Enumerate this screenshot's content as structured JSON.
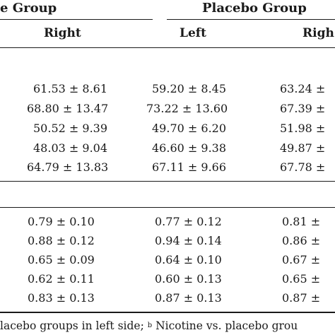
{
  "header": {
    "group_left": "e Group",
    "group_right": "Placebo Group",
    "sub_right": "Right",
    "sub_left": "Left",
    "sub_right2": "Righ"
  },
  "section1": {
    "rows": [
      {
        "c1": "61.53 ± 8.61",
        "c2": "59.20 ± 8.45",
        "c3": "63.24 ±"
      },
      {
        "c1": "68.80 ± 13.47",
        "c2": "73.22 ± 13.60",
        "c3": "67.39 ±"
      },
      {
        "c1": "50.52 ± 9.39",
        "c2": "49.70 ± 6.20",
        "c3": "51.98 ±"
      },
      {
        "c1": "48.03 ± 9.04",
        "c2": "46.60 ± 9.38",
        "c3": "49.87 ±"
      },
      {
        "c1": "64.79 ± 13.83",
        "c2": "67.11 ± 9.66",
        "c3": "67.78 ±"
      }
    ]
  },
  "section2": {
    "rows": [
      {
        "c1": "0.79 ± 0.10",
        "c2": "0.77 ± 0.12",
        "c3": "0.81 ±"
      },
      {
        "c1": "0.88 ± 0.12",
        "c2": "0.94 ± 0.14",
        "c3": "0.86 ±"
      },
      {
        "c1": "0.65 ± 0.09",
        "c2": "0.64 ± 0.10",
        "c3": "0.67 ±"
      },
      {
        "c1": "0.62 ± 0.11",
        "c2": "0.60 ± 0.13",
        "c3": "0.65 ±"
      },
      {
        "c1": "0.83 ± 0.13",
        "c2": "0.87 ± 0.13",
        "c3": "0.87 ±"
      }
    ]
  },
  "footnote": {
    "text_a": "lacebo groups in left side; ",
    "sup": "b",
    "text_b": " Nicotine vs. placebo grou"
  }
}
